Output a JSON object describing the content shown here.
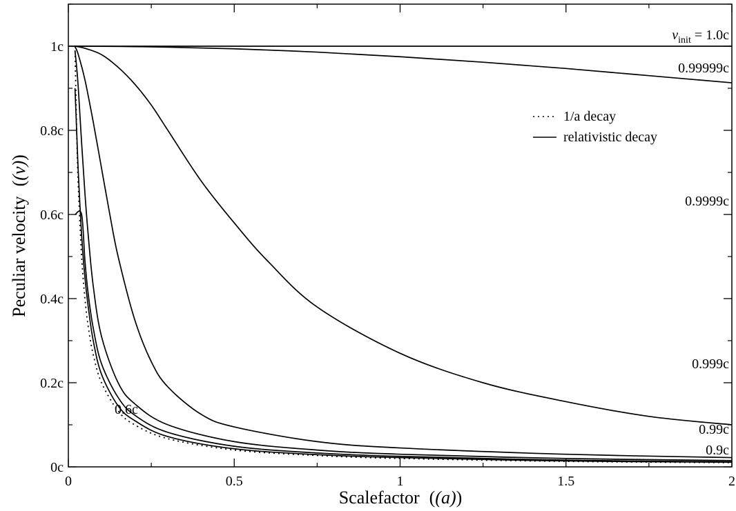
{
  "chart_data": {
    "type": "line",
    "title": "",
    "xlabel": "Scalefactor",
    "xlabel_symbol": "(a)",
    "ylabel": "Peculiar velocity",
    "ylabel_symbol": "(v)",
    "xlim": [
      0,
      2
    ],
    "ylim": [
      0,
      1.1
    ],
    "xticks": [
      0,
      0.5,
      1,
      1.5,
      2
    ],
    "xtick_labels": [
      "0",
      "0.5",
      "1",
      "1.5",
      "2"
    ],
    "yticks": [
      0,
      0.2,
      0.4,
      0.6,
      0.8,
      1.0
    ],
    "ytick_labels": [
      "0c",
      "0.2c",
      "0.4c",
      "0.6c",
      "0.8c",
      "1c"
    ],
    "grid": false,
    "legend_placement": "top-right",
    "legend": [
      {
        "label": "1/a decay",
        "style": "dotted"
      },
      {
        "label": "relativistic decay",
        "style": "solid"
      }
    ],
    "series": [
      {
        "label": "v_init = 1.0c",
        "legend": "relativistic decay",
        "style": "solid",
        "a_start": 0.0,
        "points": [
          [
            0.0,
            1.0
          ],
          [
            2.0,
            1.0
          ]
        ]
      },
      {
        "label": "0.99999c",
        "legend": "relativistic decay",
        "style": "solid",
        "a_start": 0.02,
        "points": [
          [
            0.02,
            1.0
          ],
          [
            0.1,
            0.9998
          ],
          [
            0.2,
            0.999
          ],
          [
            0.3,
            0.9977
          ],
          [
            0.5,
            0.9938
          ],
          [
            0.75,
            0.986
          ],
          [
            1.0,
            0.975
          ],
          [
            1.25,
            0.962
          ],
          [
            1.5,
            0.947
          ],
          [
            1.75,
            0.93
          ],
          [
            2.0,
            0.913
          ]
        ]
      },
      {
        "label": "0.9999c",
        "legend": "relativistic decay",
        "style": "solid",
        "a_start": 0.02,
        "points": [
          [
            0.02,
            1.0
          ],
          [
            0.05,
            0.995
          ],
          [
            0.1,
            0.98
          ],
          [
            0.15,
            0.95
          ],
          [
            0.2,
            0.91
          ],
          [
            0.25,
            0.86
          ],
          [
            0.3,
            0.8
          ],
          [
            0.4,
            0.68
          ],
          [
            0.5,
            0.58
          ],
          [
            0.6,
            0.49
          ],
          [
            0.75,
            0.38
          ],
          [
            1.0,
            0.27
          ],
          [
            1.25,
            0.2
          ],
          [
            1.5,
            0.155
          ],
          [
            1.75,
            0.12
          ],
          [
            2.0,
            0.1
          ]
        ]
      },
      {
        "label": "0.999c",
        "legend": "relativistic decay",
        "style": "solid",
        "a_start": 0.02,
        "points": [
          [
            0.02,
            0.999
          ],
          [
            0.03,
            0.98
          ],
          [
            0.05,
            0.92
          ],
          [
            0.075,
            0.82
          ],
          [
            0.1,
            0.71
          ],
          [
            0.125,
            0.6
          ],
          [
            0.15,
            0.5
          ],
          [
            0.2,
            0.35
          ],
          [
            0.25,
            0.25
          ],
          [
            0.3,
            0.19
          ],
          [
            0.4,
            0.125
          ],
          [
            0.5,
            0.095
          ],
          [
            0.75,
            0.06
          ],
          [
            1.0,
            0.045
          ],
          [
            1.5,
            0.03
          ],
          [
            2.0,
            0.022
          ]
        ]
      },
      {
        "label": "0.99c",
        "legend": "relativistic decay",
        "style": "solid",
        "a_start": 0.02,
        "points": [
          [
            0.02,
            0.99
          ],
          [
            0.025,
            0.95
          ],
          [
            0.03,
            0.9
          ],
          [
            0.04,
            0.77
          ],
          [
            0.05,
            0.65
          ],
          [
            0.06,
            0.55
          ],
          [
            0.075,
            0.43
          ],
          [
            0.1,
            0.31
          ],
          [
            0.15,
            0.2
          ],
          [
            0.2,
            0.15
          ],
          [
            0.3,
            0.1
          ],
          [
            0.5,
            0.06
          ],
          [
            0.75,
            0.04
          ],
          [
            1.0,
            0.03
          ],
          [
            1.5,
            0.02
          ],
          [
            2.0,
            0.015
          ]
        ]
      },
      {
        "label": "0.9c",
        "legend": "relativistic decay",
        "style": "solid",
        "a_start": 0.02,
        "points": [
          [
            0.02,
            0.9
          ],
          [
            0.025,
            0.8
          ],
          [
            0.03,
            0.7
          ],
          [
            0.04,
            0.55
          ],
          [
            0.05,
            0.45
          ],
          [
            0.06,
            0.38
          ],
          [
            0.075,
            0.3
          ],
          [
            0.1,
            0.22
          ],
          [
            0.15,
            0.145
          ],
          [
            0.2,
            0.11
          ],
          [
            0.3,
            0.072
          ],
          [
            0.5,
            0.043
          ],
          [
            0.75,
            0.029
          ],
          [
            1.0,
            0.022
          ],
          [
            1.5,
            0.014
          ],
          [
            2.0,
            0.011
          ]
        ]
      },
      {
        "label": "0.6c",
        "legend": "relativistic decay",
        "style": "solid",
        "a_start": 0.04,
        "points": [
          [
            0.02,
            0.6
          ],
          [
            0.04,
            0.6
          ],
          [
            0.05,
            0.49
          ],
          [
            0.06,
            0.41
          ],
          [
            0.075,
            0.33
          ],
          [
            0.1,
            0.245
          ],
          [
            0.15,
            0.165
          ],
          [
            0.2,
            0.123
          ],
          [
            0.3,
            0.082
          ],
          [
            0.5,
            0.049
          ],
          [
            0.75,
            0.033
          ],
          [
            1.0,
            0.025
          ],
          [
            1.5,
            0.016
          ],
          [
            2.0,
            0.012
          ]
        ]
      },
      {
        "label": "1/a decay",
        "legend": "1/a decay",
        "style": "dotted",
        "a_start": 0.02,
        "points": [
          [
            0.02,
            1.0
          ],
          [
            0.025,
            0.8
          ],
          [
            0.03,
            0.667
          ],
          [
            0.04,
            0.5
          ],
          [
            0.05,
            0.4
          ],
          [
            0.06,
            0.333
          ],
          [
            0.075,
            0.267
          ],
          [
            0.1,
            0.2
          ],
          [
            0.15,
            0.133
          ],
          [
            0.2,
            0.1
          ],
          [
            0.3,
            0.067
          ],
          [
            0.5,
            0.04
          ],
          [
            0.75,
            0.027
          ],
          [
            1.0,
            0.02
          ],
          [
            1.5,
            0.013
          ],
          [
            2.0,
            0.01
          ]
        ]
      }
    ],
    "curve_labels": {
      "vinit_symbol": "v",
      "vinit_sub": "init",
      "vinit_rest": " = 1.0c",
      "c99999": "0.99999c",
      "c9999": "0.9999c",
      "c999": "0.999c",
      "c99": "0.99c",
      "c9": "0.9c",
      "c6": "0.6c"
    }
  }
}
